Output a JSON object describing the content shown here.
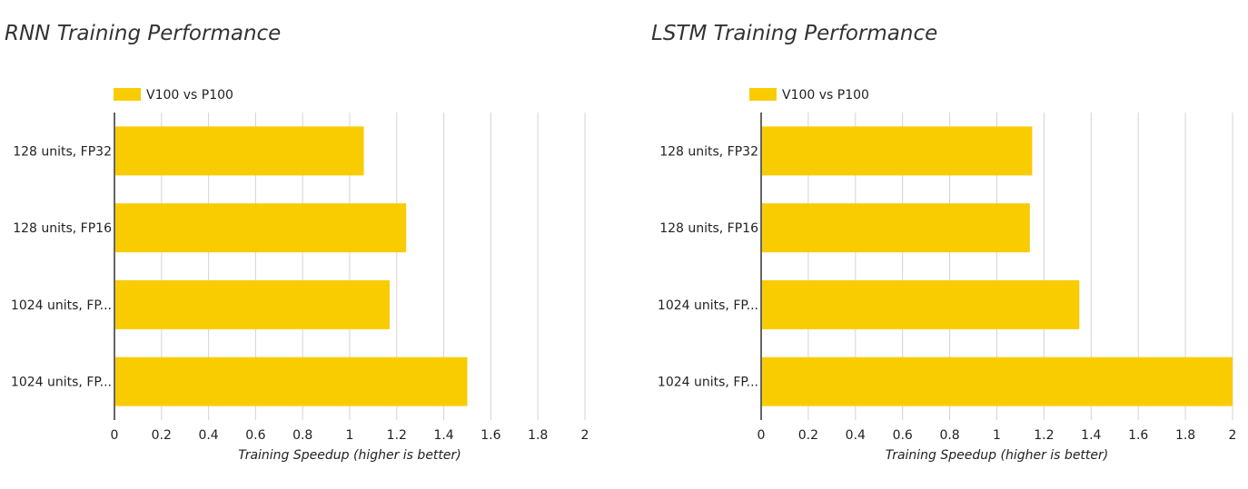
{
  "chart_data": [
    {
      "type": "bar",
      "orientation": "horizontal",
      "title": "RNN Training Performance",
      "categories": [
        "128 units, FP32",
        "128 units, FP16",
        "1024 units, FP...",
        "1024 units, FP..."
      ],
      "series": [
        {
          "name": "V100 vs P100",
          "values": [
            1.06,
            1.24,
            1.17,
            1.5
          ]
        }
      ],
      "xlabel": "Training Speedup (higher is better)",
      "ylabel": "",
      "xlim": [
        0,
        2
      ],
      "ticks": [
        "0",
        "0.2",
        "0.4",
        "0.6",
        "0.8",
        "1",
        "1.2",
        "1.4",
        "1.6",
        "1.8",
        "2"
      ],
      "grid": true,
      "legend": "top-left",
      "color": "#f9cc02"
    },
    {
      "type": "bar",
      "orientation": "horizontal",
      "title": "LSTM Training Performance",
      "categories": [
        "128 units, FP32",
        "128 units, FP16",
        "1024 units, FP...",
        "1024 units, FP..."
      ],
      "series": [
        {
          "name": "V100 vs P100",
          "values": [
            1.15,
            1.14,
            1.35,
            2.0
          ]
        }
      ],
      "xlabel": "Training Speedup (higher is better)",
      "ylabel": "",
      "xlim": [
        0,
        2
      ],
      "ticks": [
        "0",
        "0.2",
        "0.4",
        "0.6",
        "0.8",
        "1",
        "1.2",
        "1.4",
        "1.6",
        "1.8",
        "2"
      ],
      "grid": true,
      "legend": "top-left",
      "color": "#f9cc02"
    }
  ]
}
